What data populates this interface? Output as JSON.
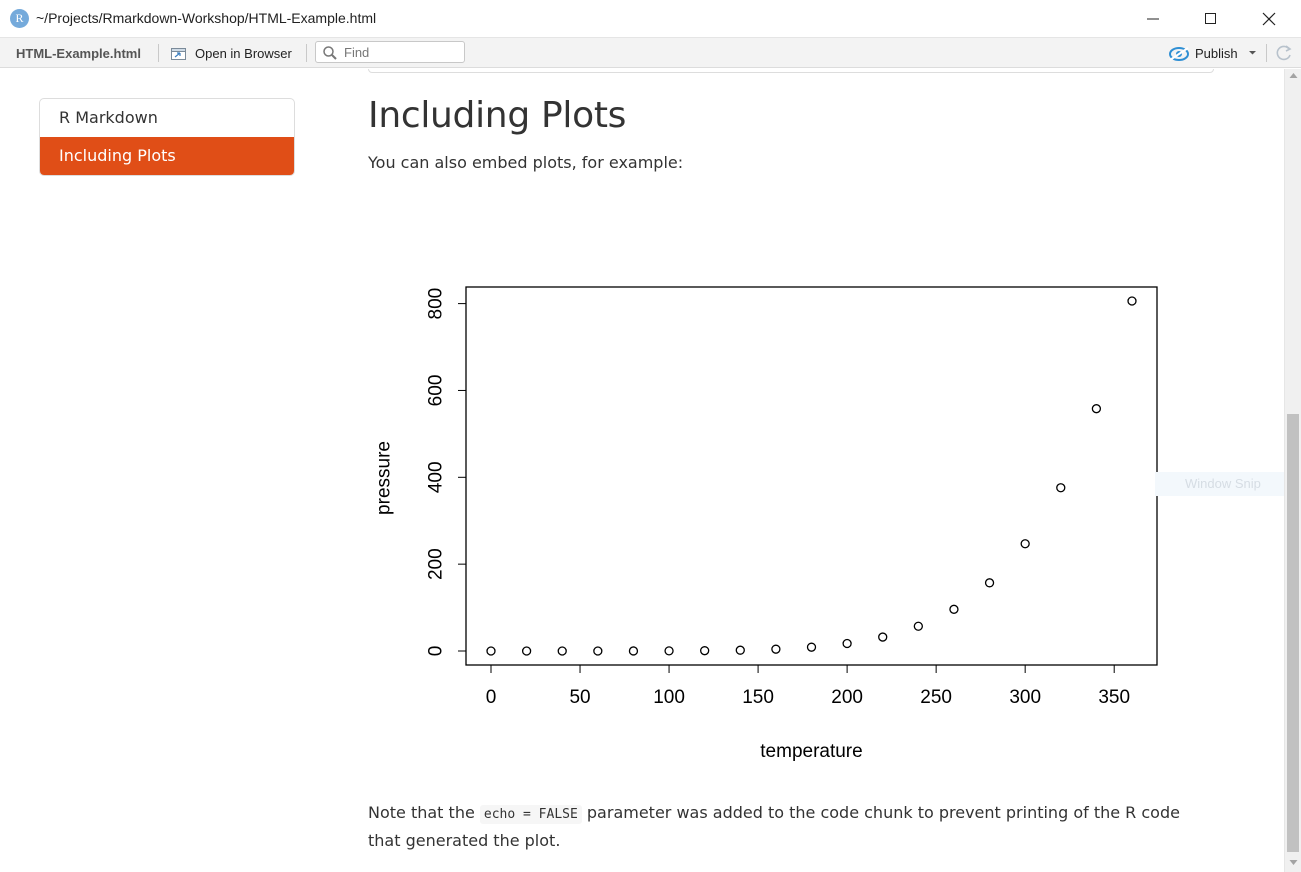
{
  "window": {
    "title": "~/Projects/Rmarkdown-Workshop/HTML-Example.html",
    "app_icon_letter": "R"
  },
  "toolbar": {
    "doc_tab": "HTML-Example.html",
    "open_in_browser": "Open in Browser",
    "find_placeholder": "Find",
    "publish": "Publish"
  },
  "toc": {
    "items": [
      {
        "label": "R Markdown",
        "active": false
      },
      {
        "label": "Including Plots",
        "active": true
      }
    ]
  },
  "main": {
    "section_title": "Including Plots",
    "intro": "You can also embed plots, for example:",
    "note": {
      "before": "Note that the ",
      "code": "echo = FALSE",
      "after": " parameter was added to the code chunk to prevent printing of the R code that generated the plot."
    }
  },
  "chart_data": {
    "type": "scatter",
    "title": "",
    "xlabel": "temperature",
    "ylabel": "pressure",
    "xlim": [
      0,
      360
    ],
    "ylim": [
      0,
      806
    ],
    "x_ticks": [
      0,
      50,
      100,
      150,
      200,
      250,
      300,
      350
    ],
    "y_ticks": [
      0,
      200,
      400,
      600,
      800
    ],
    "grid": false,
    "point_style": "open-circle",
    "x": [
      0,
      20,
      40,
      60,
      80,
      100,
      120,
      140,
      160,
      180,
      200,
      220,
      240,
      260,
      280,
      300,
      320,
      340,
      360
    ],
    "y": [
      0.0002,
      0.0012,
      0.006,
      0.03,
      0.09,
      0.27,
      0.75,
      1.85,
      4.2,
      8.8,
      17.3,
      32.1,
      57,
      96,
      157,
      247,
      376,
      558,
      806
    ]
  },
  "overlay": {
    "window_snip": "Window Snip"
  },
  "colors": {
    "accent": "#e04e17",
    "publish_icon": "#2f8fd4",
    "r_icon": "#75aadb"
  }
}
